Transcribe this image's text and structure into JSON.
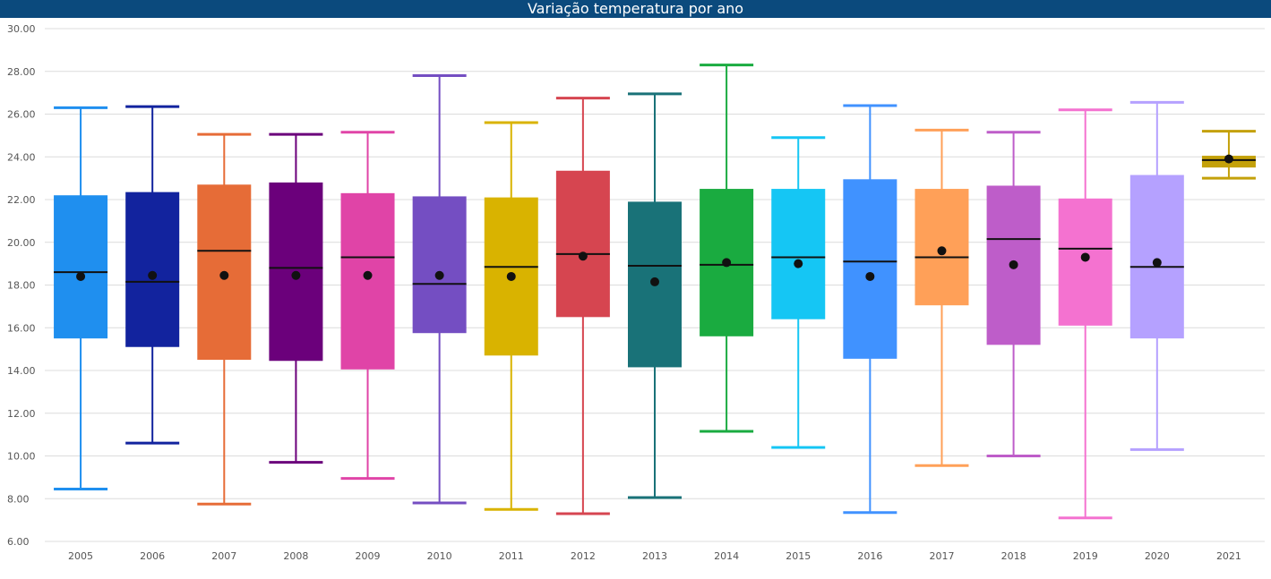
{
  "title": "Variação temperatura por ano",
  "chart_data": {
    "type": "boxplot",
    "title": "Variação temperatura por ano",
    "xlabel": "",
    "ylabel": "",
    "ylim": [
      6,
      30
    ],
    "y_ticks": [
      "6.00",
      "8.00",
      "10.00",
      "12.00",
      "14.00",
      "16.00",
      "18.00",
      "20.00",
      "22.00",
      "24.00",
      "26.00",
      "28.00",
      "30.00"
    ],
    "grid": true,
    "categories": [
      "2005",
      "2006",
      "2007",
      "2008",
      "2009",
      "2010",
      "2011",
      "2012",
      "2013",
      "2014",
      "2015",
      "2016",
      "2017",
      "2018",
      "2019",
      "2020",
      "2021"
    ],
    "boxes": [
      {
        "category": "2005",
        "min": 8.45,
        "q1": 15.5,
        "median": 18.6,
        "q3": 22.2,
        "max": 26.3,
        "mean": 18.4,
        "color": "#1f8fef"
      },
      {
        "category": "2006",
        "min": 10.6,
        "q1": 15.1,
        "median": 18.15,
        "q3": 22.35,
        "max": 26.35,
        "mean": 18.45,
        "color": "#12239e"
      },
      {
        "category": "2007",
        "min": 7.75,
        "q1": 14.5,
        "median": 19.6,
        "q3": 22.7,
        "max": 25.05,
        "mean": 18.45,
        "color": "#e66c37"
      },
      {
        "category": "2008",
        "min": 9.7,
        "q1": 14.45,
        "median": 18.8,
        "q3": 22.8,
        "max": 25.05,
        "mean": 18.45,
        "color": "#6b007b"
      },
      {
        "category": "2009",
        "min": 8.95,
        "q1": 14.05,
        "median": 19.3,
        "q3": 22.3,
        "max": 25.15,
        "mean": 18.45,
        "color": "#e044a7"
      },
      {
        "category": "2010",
        "min": 7.8,
        "q1": 15.75,
        "median": 18.05,
        "q3": 22.15,
        "max": 27.8,
        "mean": 18.45,
        "color": "#744ec2"
      },
      {
        "category": "2011",
        "min": 7.5,
        "q1": 14.7,
        "median": 18.85,
        "q3": 22.1,
        "max": 25.6,
        "mean": 18.4,
        "color": "#d9b300"
      },
      {
        "category": "2012",
        "min": 7.3,
        "q1": 16.5,
        "median": 19.45,
        "q3": 23.35,
        "max": 26.75,
        "mean": 19.35,
        "color": "#d64550"
      },
      {
        "category": "2013",
        "min": 8.05,
        "q1": 14.15,
        "median": 18.9,
        "q3": 21.9,
        "max": 26.95,
        "mean": 18.15,
        "color": "#197278"
      },
      {
        "category": "2014",
        "min": 11.15,
        "q1": 15.6,
        "median": 18.95,
        "q3": 22.5,
        "max": 28.3,
        "mean": 19.05,
        "color": "#1aab40"
      },
      {
        "category": "2015",
        "min": 10.4,
        "q1": 16.4,
        "median": 19.3,
        "q3": 22.5,
        "max": 24.9,
        "mean": 19.0,
        "color": "#15c6f4"
      },
      {
        "category": "2016",
        "min": 7.35,
        "q1": 14.55,
        "median": 19.1,
        "q3": 22.95,
        "max": 26.4,
        "mean": 18.4,
        "color": "#4092ff"
      },
      {
        "category": "2017",
        "min": 9.55,
        "q1": 17.05,
        "median": 19.3,
        "q3": 22.5,
        "max": 25.25,
        "mean": 19.6,
        "color": "#ffa058"
      },
      {
        "category": "2018",
        "min": 10.0,
        "q1": 15.2,
        "median": 20.15,
        "q3": 22.65,
        "max": 25.15,
        "mean": 18.95,
        "color": "#be5dc9"
      },
      {
        "category": "2019",
        "min": 7.1,
        "q1": 16.1,
        "median": 19.7,
        "q3": 22.05,
        "max": 26.2,
        "mean": 19.3,
        "color": "#f472d0"
      },
      {
        "category": "2020",
        "min": 10.3,
        "q1": 15.5,
        "median": 18.85,
        "q3": 23.15,
        "max": 26.55,
        "mean": 19.05,
        "color": "#b5a1ff"
      },
      {
        "category": "2021",
        "min": 23.0,
        "q1": 23.5,
        "median": 23.85,
        "q3": 24.05,
        "max": 25.2,
        "mean": 23.9,
        "color": "#c4a10a"
      }
    ]
  }
}
